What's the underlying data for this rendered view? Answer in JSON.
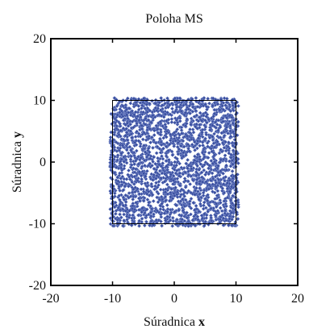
{
  "chart_data": {
    "type": "scatter",
    "title": "Poloha MS",
    "xlabel_prefix": "Súradnica ",
    "xlabel_var": "x",
    "ylabel_prefix": "Súradnica ",
    "ylabel_var": "y",
    "xlim": [
      -20,
      20
    ],
    "ylim": [
      -20,
      20
    ],
    "xticks": [
      -20,
      -10,
      0,
      10,
      20
    ],
    "yticks": [
      -20,
      -10,
      0,
      10,
      20
    ],
    "grid": false,
    "region": {
      "x_range": [
        -10,
        10
      ],
      "y_range": [
        -10,
        10
      ]
    },
    "series": [
      {
        "marker": "diamond",
        "color": "#3a4fa0",
        "edge_color": "#8fa0d8",
        "count": 2500,
        "distribution": "uniform",
        "x_range": [
          -10.4,
          10.4
        ],
        "y_range": [
          -10.4,
          10.4
        ]
      }
    ]
  }
}
